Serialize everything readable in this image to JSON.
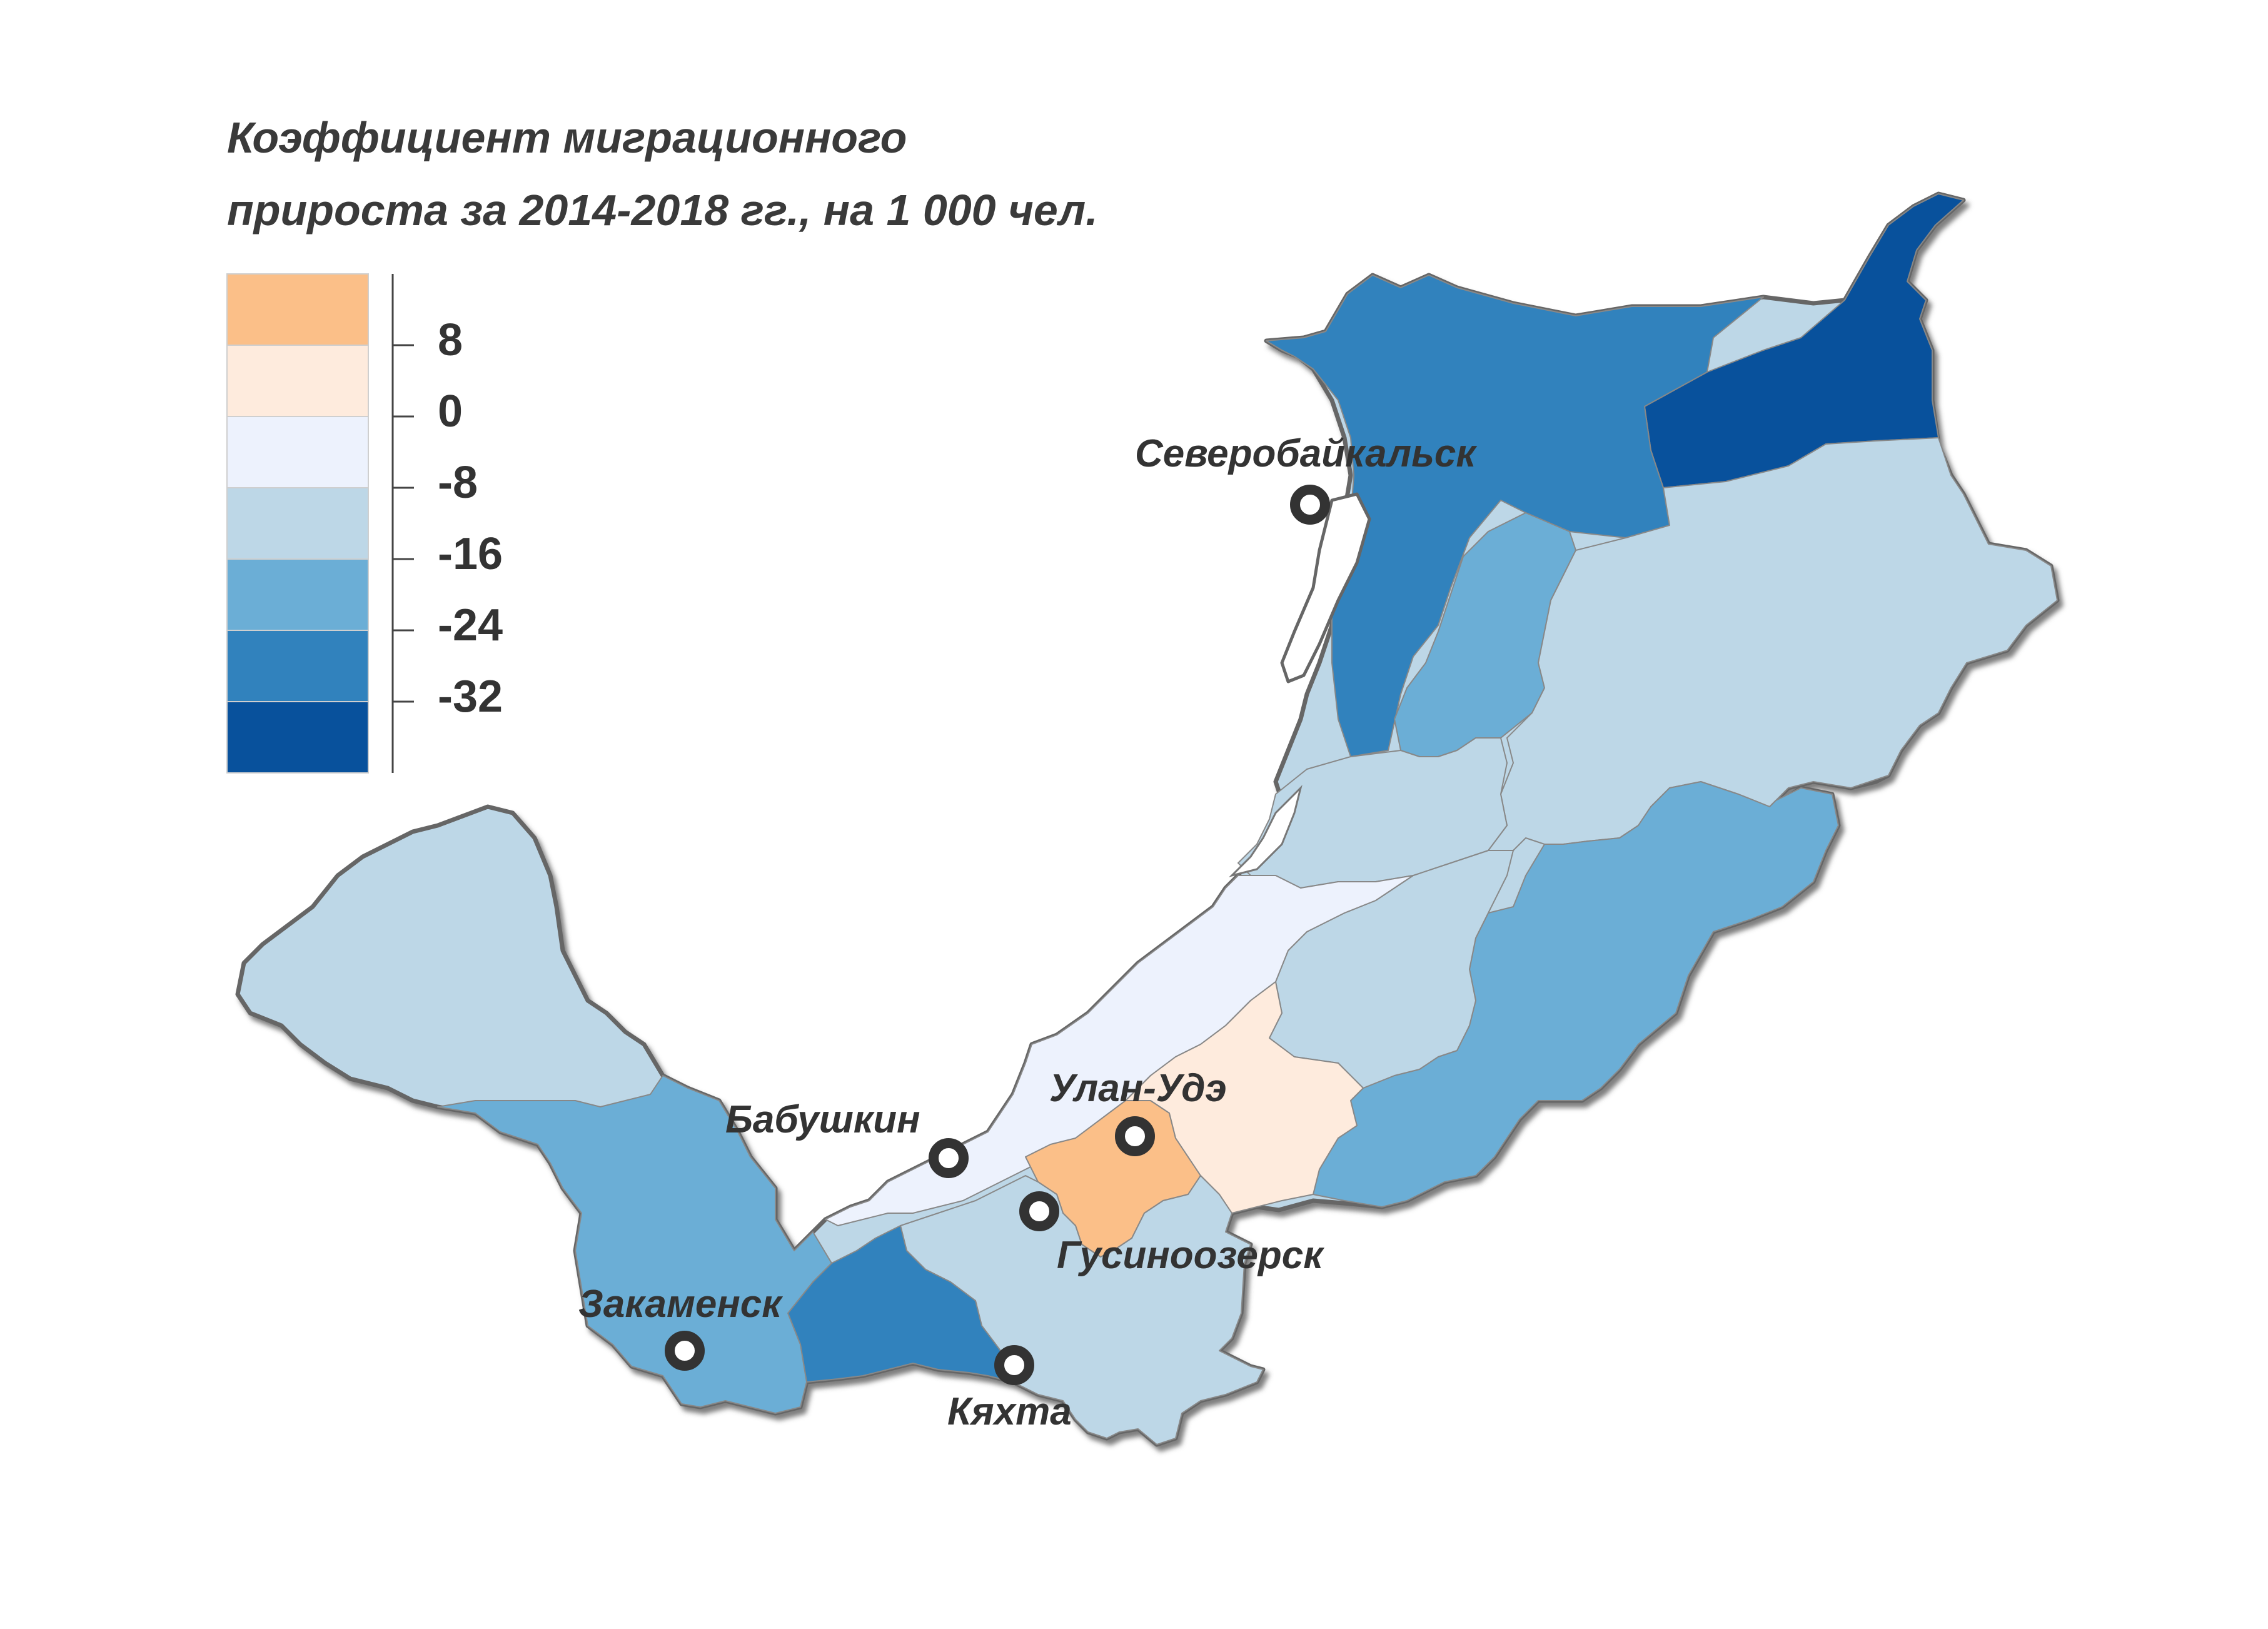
{
  "title": {
    "line1": "Коэффициент миграционного",
    "line2": "прироста за 2014-2018 гг., на 1 000 чел."
  },
  "legend": {
    "colors": [
      "#fbbf88",
      "#feebdd",
      "#edf2fd",
      "#bdd7e7",
      "#6baed6",
      "#3182bd",
      "#08519c"
    ],
    "labels": [
      "8",
      "0",
      "-8",
      "-16",
      "-24",
      "-32"
    ]
  },
  "cities": [
    {
      "id": "severobaikalsk",
      "name": "Северобайкальск"
    },
    {
      "id": "ulan-ude",
      "name": "Улан-Удэ"
    },
    {
      "id": "babushkin",
      "name": "Бабушкин"
    },
    {
      "id": "gusinoozersk",
      "name": "Гусиноозерск"
    },
    {
      "id": "zakamensk",
      "name": "Закаменск"
    },
    {
      "id": "kyakhta",
      "name": "Кяхта"
    }
  ]
}
